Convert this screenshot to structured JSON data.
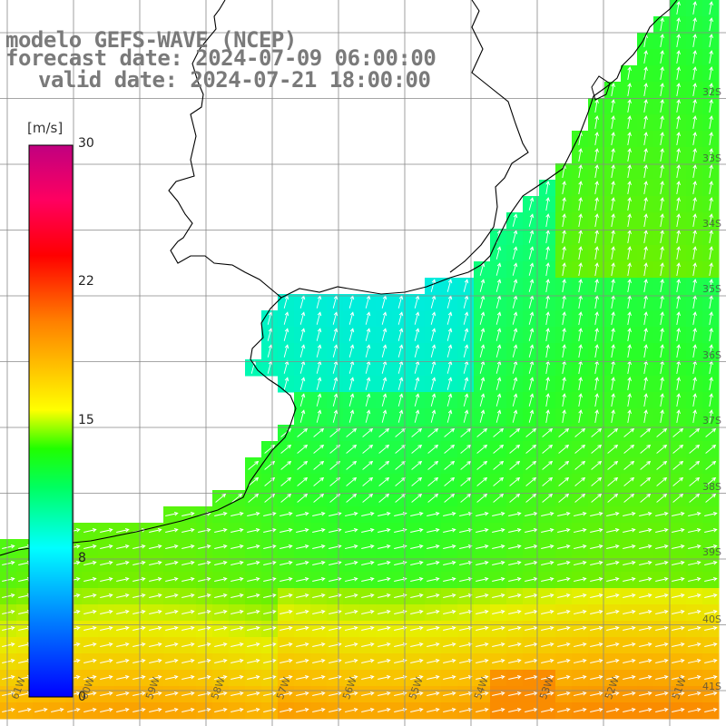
{
  "title": {
    "line1": "modelo GEFS-WAVE (NCEP)",
    "line2": "forecast date: 2024-07-09 06:00:00",
    "line3": "valid date: 2024-07-21 18:00:00"
  },
  "colorbar": {
    "unit": "[m/s]",
    "ticks": [
      "30",
      "22",
      "15",
      "8",
      "0"
    ],
    "colors": [
      "#0000ff",
      "#0080ff",
      "#00ffff",
      "#00ff40",
      "#40ff00",
      "#ffff00",
      "#ff8000",
      "#ff0000",
      "#ff0060",
      "#c00080"
    ]
  },
  "lat_labels": [
    "32S",
    "33S",
    "34S",
    "35S",
    "36S",
    "37S",
    "38S",
    "39S",
    "40S",
    "41S"
  ],
  "lon_labels": [
    "61W",
    "60W",
    "59W",
    "58W",
    "57W",
    "56W",
    "55W",
    "54W",
    "53W",
    "52W",
    "51W"
  ],
  "map": {
    "land_color": "#ffffff",
    "coast_color": "#000000",
    "grid_color": "#808080",
    "arrow_color": "#ffffff"
  }
}
